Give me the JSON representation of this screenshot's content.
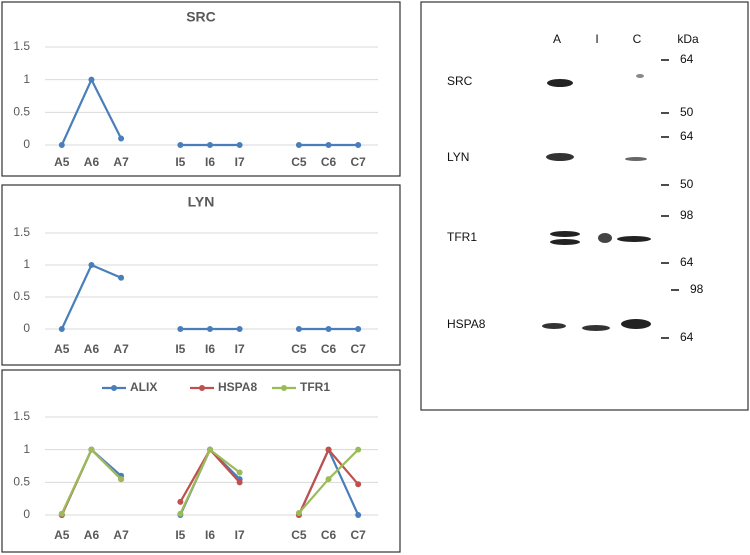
{
  "chart_data": [
    {
      "type": "line",
      "title": "SRC",
      "categories": [
        "A5",
        "A6",
        "A7",
        null,
        "I5",
        "I6",
        "I7",
        null,
        "C5",
        "C6",
        "C7"
      ],
      "values": [
        0,
        1,
        0.1,
        null,
        0,
        0,
        0,
        null,
        0,
        0,
        0
      ],
      "color": "#4a7ebb",
      "ylim": [
        0,
        1.5
      ],
      "yticks": [
        0,
        0.5,
        1,
        1.5
      ],
      "grid": true
    },
    {
      "type": "line",
      "title": "LYN",
      "categories": [
        "A5",
        "A6",
        "A7",
        null,
        "I5",
        "I6",
        "I7",
        null,
        "C5",
        "C6",
        "C7"
      ],
      "values": [
        0,
        1,
        0.8,
        null,
        0,
        0,
        0,
        null,
        0,
        0,
        0
      ],
      "color": "#4a7ebb",
      "ylim": [
        0,
        1.5
      ],
      "yticks": [
        0,
        0.5,
        1,
        1.5
      ],
      "grid": true
    },
    {
      "type": "line",
      "legend": "top",
      "categories": [
        "A5",
        "A6",
        "A7",
        null,
        "I5",
        "I6",
        "I7",
        null,
        "C5",
        "C6",
        "C7"
      ],
      "series": [
        {
          "name": "ALIX",
          "color": "#4a7ebb",
          "values": [
            0,
            1,
            0.6,
            null,
            0,
            1,
            0.55,
            null,
            0,
            1,
            0
          ]
        },
        {
          "name": "HSPA8",
          "color": "#c0504d",
          "values": [
            0,
            1,
            0.55,
            null,
            0.2,
            1,
            0.5,
            null,
            0,
            1,
            0.47
          ]
        },
        {
          "name": "TFR1",
          "color": "#9bbb59",
          "values": [
            0.02,
            1,
            0.55,
            null,
            0.02,
            1,
            0.65,
            null,
            0.03,
            0.55,
            1
          ]
        }
      ],
      "ylim": [
        0,
        1.5
      ],
      "yticks": [
        0,
        0.5,
        1,
        1.5
      ],
      "grid": true
    }
  ],
  "blot": {
    "lanes": [
      "A",
      "I",
      "C"
    ],
    "unit": "kDa",
    "proteins": [
      "SRC",
      "LYN",
      "TFR1",
      "HSPA8"
    ],
    "markers": [
      [
        "64",
        "50"
      ],
      [
        "64",
        "50"
      ],
      [
        "98",
        "64"
      ],
      [
        "98",
        "64"
      ]
    ]
  }
}
